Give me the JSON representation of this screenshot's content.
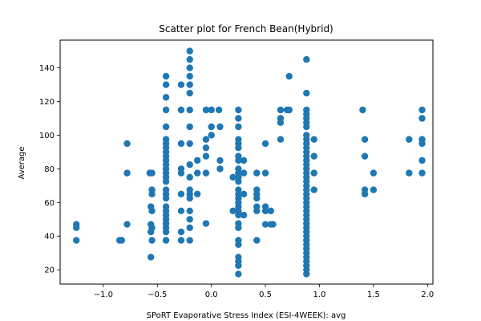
{
  "chart_data": {
    "type": "scatter",
    "title": "Scatter plot for French Bean(Hybrid)",
    "xlabel": "SPoRT Evaporative Stress Index (ESI-4WEEK): avg",
    "ylabel": "Average",
    "xlim": [
      -1.4,
      2.05
    ],
    "ylim": [
      11.5,
      156.5
    ],
    "xticks": [
      -1.0,
      -0.5,
      0.0,
      0.5,
      1.0,
      1.5,
      2.0
    ],
    "xtick_labels": [
      "−1.0",
      "−0.5",
      "0.0",
      "0.5",
      "1.0",
      "1.5",
      "2.0"
    ],
    "yticks": [
      20,
      40,
      60,
      80,
      100,
      120,
      140
    ],
    "ytick_labels": [
      "20",
      "40",
      "60",
      "80",
      "100",
      "120",
      "140"
    ],
    "grid": false,
    "colors": {
      "marker": "#1f77b4",
      "axes": "#000000",
      "background": "#ffffff"
    },
    "series": [
      {
        "points": [
          [
            -1.25,
            47
          ],
          [
            -1.25,
            45
          ],
          [
            -1.25,
            37.5
          ],
          [
            -0.85,
            37.5
          ],
          [
            -0.83,
            37.5
          ],
          [
            -0.78,
            95
          ],
          [
            -0.78,
            77.5
          ],
          [
            -0.78,
            47
          ],
          [
            -0.57,
            77.5
          ],
          [
            -0.55,
            77.5
          ],
          [
            -0.55,
            67.5
          ],
          [
            -0.55,
            65
          ],
          [
            -0.56,
            57.5
          ],
          [
            -0.55,
            55
          ],
          [
            -0.56,
            47
          ],
          [
            -0.55,
            45
          ],
          [
            -0.56,
            42.5
          ],
          [
            -0.55,
            37.5
          ],
          [
            -0.56,
            27.5
          ],
          [
            -0.42,
            135
          ],
          [
            -0.42,
            130
          ],
          [
            -0.42,
            122.5
          ],
          [
            -0.42,
            115
          ],
          [
            -0.42,
            105
          ],
          [
            -0.42,
            97.5
          ],
          [
            -0.42,
            95
          ],
          [
            -0.42,
            92.5
          ],
          [
            -0.42,
            90
          ],
          [
            -0.42,
            87.5
          ],
          [
            -0.42,
            85
          ],
          [
            -0.42,
            82.5
          ],
          [
            -0.42,
            80
          ],
          [
            -0.42,
            77.5
          ],
          [
            -0.42,
            75
          ],
          [
            -0.42,
            72.5
          ],
          [
            -0.42,
            67.5
          ],
          [
            -0.42,
            65
          ],
          [
            -0.42,
            62.5
          ],
          [
            -0.42,
            57.5
          ],
          [
            -0.42,
            55
          ],
          [
            -0.42,
            52.5
          ],
          [
            -0.42,
            50
          ],
          [
            -0.42,
            47.5
          ],
          [
            -0.42,
            45
          ],
          [
            -0.42,
            42.5
          ],
          [
            -0.42,
            37.5
          ],
          [
            -0.28,
            130
          ],
          [
            -0.28,
            115
          ],
          [
            -0.28,
            95
          ],
          [
            -0.28,
            80
          ],
          [
            -0.28,
            77.5
          ],
          [
            -0.28,
            65
          ],
          [
            -0.28,
            55
          ],
          [
            -0.28,
            42.5
          ],
          [
            -0.28,
            37.5
          ],
          [
            -0.2,
            150
          ],
          [
            -0.2,
            145
          ],
          [
            -0.2,
            140
          ],
          [
            -0.2,
            135
          ],
          [
            -0.2,
            130
          ],
          [
            -0.2,
            125
          ],
          [
            -0.2,
            115
          ],
          [
            -0.2,
            105
          ],
          [
            -0.2,
            95
          ],
          [
            -0.2,
            82.5
          ],
          [
            -0.2,
            75
          ],
          [
            -0.2,
            67.5
          ],
          [
            -0.2,
            65
          ],
          [
            -0.2,
            62.5
          ],
          [
            -0.2,
            55
          ],
          [
            -0.2,
            50
          ],
          [
            -0.2,
            45
          ],
          [
            -0.2,
            37.5
          ],
          [
            -0.13,
            85
          ],
          [
            -0.13,
            77.5
          ],
          [
            -0.13,
            65
          ],
          [
            -0.05,
            115
          ],
          [
            -0.05,
            97.5
          ],
          [
            -0.05,
            92.5
          ],
          [
            -0.05,
            87.5
          ],
          [
            -0.05,
            77.5
          ],
          [
            -0.05,
            47.5
          ],
          [
            0.0,
            115
          ],
          [
            0.0,
            105
          ],
          [
            0.0,
            100
          ],
          [
            0.07,
            115
          ],
          [
            0.08,
            105
          ],
          [
            0.08,
            85
          ],
          [
            0.08,
            80
          ],
          [
            0.2,
            75
          ],
          [
            0.2,
            55
          ],
          [
            0.25,
            115
          ],
          [
            0.25,
            110
          ],
          [
            0.25,
            105
          ],
          [
            0.25,
            97.5
          ],
          [
            0.25,
            95
          ],
          [
            0.25,
            92.5
          ],
          [
            0.25,
            87.5
          ],
          [
            0.25,
            85
          ],
          [
            0.25,
            80
          ],
          [
            0.25,
            77.5
          ],
          [
            0.25,
            75
          ],
          [
            0.25,
            72.5
          ],
          [
            0.25,
            67.5
          ],
          [
            0.25,
            65
          ],
          [
            0.25,
            62.5
          ],
          [
            0.25,
            60
          ],
          [
            0.25,
            57.5
          ],
          [
            0.25,
            55
          ],
          [
            0.25,
            52.5
          ],
          [
            0.25,
            47.5
          ],
          [
            0.25,
            45
          ],
          [
            0.25,
            37.5
          ],
          [
            0.25,
            35
          ],
          [
            0.25,
            27.5
          ],
          [
            0.25,
            25
          ],
          [
            0.25,
            22.5
          ],
          [
            0.25,
            17.5
          ],
          [
            0.3,
            85
          ],
          [
            0.3,
            77.5
          ],
          [
            0.3,
            65
          ],
          [
            0.3,
            52.5
          ],
          [
            0.42,
            77.5
          ],
          [
            0.42,
            67.5
          ],
          [
            0.42,
            65
          ],
          [
            0.42,
            62.5
          ],
          [
            0.42,
            57.5
          ],
          [
            0.42,
            55
          ],
          [
            0.42,
            37.5
          ],
          [
            0.5,
            95
          ],
          [
            0.5,
            77.5
          ],
          [
            0.5,
            57.5
          ],
          [
            0.5,
            55
          ],
          [
            0.5,
            47
          ],
          [
            0.55,
            55
          ],
          [
            0.55,
            47
          ],
          [
            0.57,
            47
          ],
          [
            0.64,
            115
          ],
          [
            0.64,
            110
          ],
          [
            0.64,
            107.5
          ],
          [
            0.64,
            97.5
          ],
          [
            0.7,
            115
          ],
          [
            0.72,
            115
          ],
          [
            0.72,
            135
          ],
          [
            0.88,
            145
          ],
          [
            0.88,
            125
          ],
          [
            0.88,
            115
          ],
          [
            0.88,
            112.5
          ],
          [
            0.88,
            110
          ],
          [
            0.88,
            107.5
          ],
          [
            0.88,
            105
          ],
          [
            0.88,
            100
          ],
          [
            0.88,
            97.5
          ],
          [
            0.88,
            95
          ],
          [
            0.88,
            92.5
          ],
          [
            0.88,
            90
          ],
          [
            0.88,
            87.5
          ],
          [
            0.88,
            85
          ],
          [
            0.88,
            82.5
          ],
          [
            0.88,
            80
          ],
          [
            0.88,
            77.5
          ],
          [
            0.88,
            75
          ],
          [
            0.88,
            72.5
          ],
          [
            0.88,
            70
          ],
          [
            0.88,
            67.5
          ],
          [
            0.88,
            65
          ],
          [
            0.88,
            62.5
          ],
          [
            0.88,
            60
          ],
          [
            0.88,
            57.5
          ],
          [
            0.88,
            55
          ],
          [
            0.88,
            52.5
          ],
          [
            0.88,
            50
          ],
          [
            0.88,
            47.5
          ],
          [
            0.88,
            45
          ],
          [
            0.88,
            42.5
          ],
          [
            0.88,
            40
          ],
          [
            0.88,
            37.5
          ],
          [
            0.88,
            35
          ],
          [
            0.88,
            32.5
          ],
          [
            0.88,
            30
          ],
          [
            0.88,
            27.5
          ],
          [
            0.88,
            25
          ],
          [
            0.88,
            22.5
          ],
          [
            0.88,
            20
          ],
          [
            0.88,
            17.5
          ],
          [
            0.95,
            97.5
          ],
          [
            0.95,
            87.5
          ],
          [
            0.95,
            77.5
          ],
          [
            0.95,
            67.5
          ],
          [
            1.4,
            115
          ],
          [
            1.42,
            97.5
          ],
          [
            1.42,
            87.5
          ],
          [
            1.42,
            67.5
          ],
          [
            1.42,
            65
          ],
          [
            1.5,
            77.5
          ],
          [
            1.5,
            67.5
          ],
          [
            1.83,
            97.5
          ],
          [
            1.83,
            77.5
          ],
          [
            1.95,
            115
          ],
          [
            1.95,
            110
          ],
          [
            1.95,
            97.5
          ],
          [
            1.95,
            95
          ],
          [
            1.95,
            85
          ],
          [
            1.95,
            77.5
          ]
        ]
      }
    ]
  }
}
